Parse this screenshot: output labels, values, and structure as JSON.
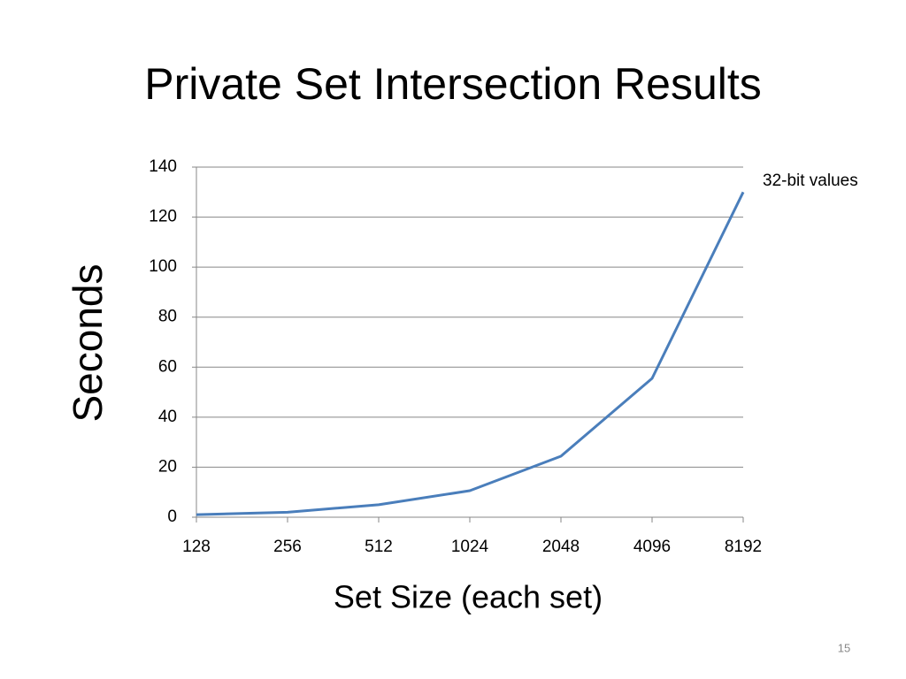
{
  "chart_data": {
    "type": "line",
    "title": "Private Set Intersection Results",
    "x_label": "Set Size (each set)",
    "y_label": "Seconds",
    "categories": [
      "128",
      "256",
      "512",
      "1024",
      "2048",
      "4096",
      "8192"
    ],
    "series": [
      {
        "name": "32-bit values",
        "color": "#4a7ebb",
        "values": [
          1,
          2,
          5,
          10.6,
          24.4,
          55.5,
          130
        ]
      }
    ],
    "ylim": [
      0,
      140
    ],
    "yticks": [
      0,
      20,
      40,
      60,
      80,
      100,
      120,
      140
    ],
    "grid": true,
    "legend": "top-right"
  },
  "slide_number": "15"
}
